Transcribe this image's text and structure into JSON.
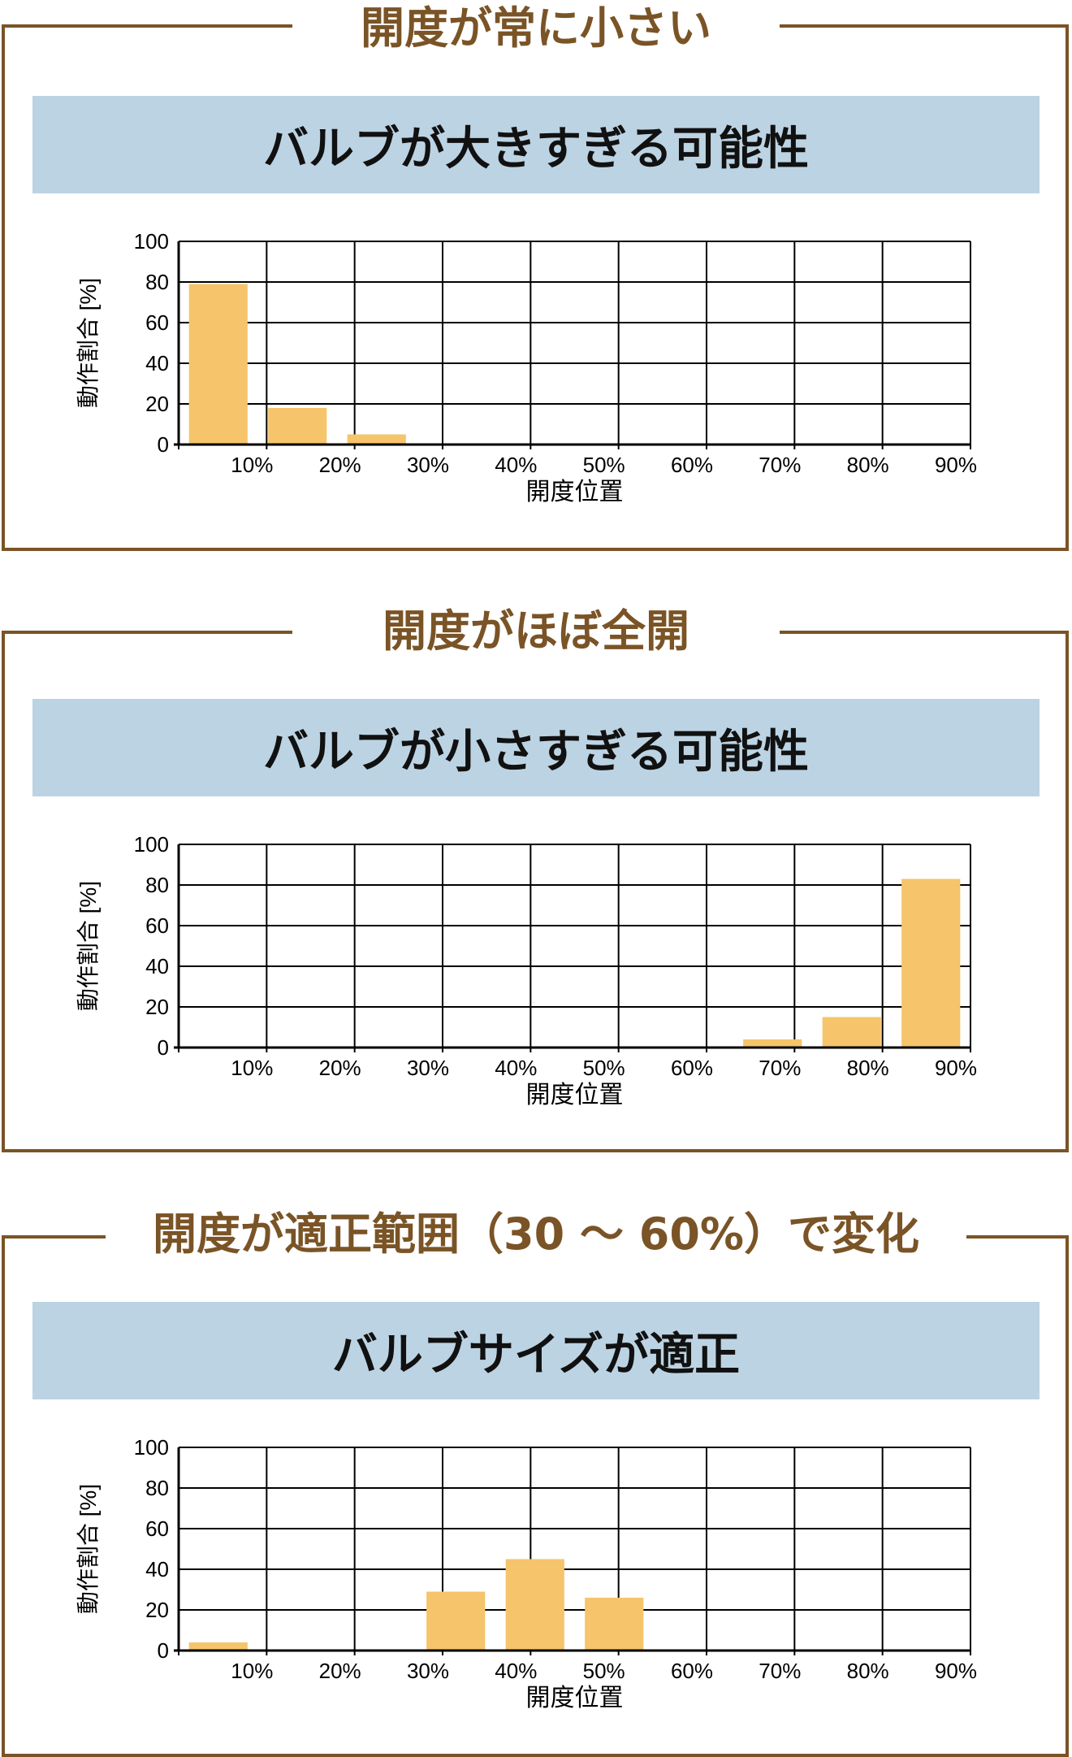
{
  "colors": {
    "frame": "#7a5426",
    "heading": "#7a5426",
    "banner": "#bcd3e3",
    "bar": "#f5c46b",
    "grid": "#000000"
  },
  "panels": [
    {
      "heading": "開度が常に小さい",
      "banner": "バルブが大きすぎる可能性"
    },
    {
      "heading": "開度がほぼ全開",
      "banner": "バルブが小さすぎる可能性"
    },
    {
      "heading": "開度が適正範囲（30 ～ 60%）で変化",
      "banner": "バルブサイズが適正"
    }
  ],
  "chart_data": [
    {
      "type": "bar",
      "categories": [
        "0-10%",
        "10-20%",
        "20-30%",
        "30-40%",
        "40-50%",
        "50-60%",
        "60-70%",
        "70-80%",
        "80-90%",
        "90-100%"
      ],
      "values": [
        79,
        18,
        5,
        0,
        0,
        0,
        0,
        0,
        0,
        0
      ],
      "xlabel": "開度位置",
      "ylabel": "動作割合 [%]",
      "xticks": [
        "10%",
        "20%",
        "30%",
        "40%",
        "50%",
        "60%",
        "70%",
        "80%",
        "90%"
      ],
      "yticks": [
        "0",
        "20",
        "40",
        "60",
        "80",
        "100"
      ],
      "ylim": [
        0,
        100
      ],
      "grid": true
    },
    {
      "type": "bar",
      "categories": [
        "0-10%",
        "10-20%",
        "20-30%",
        "30-40%",
        "40-50%",
        "50-60%",
        "60-70%",
        "70-80%",
        "80-90%",
        "90-100%"
      ],
      "values": [
        0,
        0,
        0,
        0,
        0,
        0,
        0,
        4,
        15,
        83
      ],
      "xlabel": "開度位置",
      "ylabel": "動作割合 [%]",
      "xticks": [
        "10%",
        "20%",
        "30%",
        "40%",
        "50%",
        "60%",
        "70%",
        "80%",
        "90%"
      ],
      "yticks": [
        "0",
        "20",
        "40",
        "60",
        "80",
        "100"
      ],
      "ylim": [
        0,
        100
      ],
      "grid": true
    },
    {
      "type": "bar",
      "categories": [
        "0-10%",
        "10-20%",
        "20-30%",
        "30-40%",
        "40-50%",
        "50-60%",
        "60-70%",
        "70-80%",
        "80-90%",
        "90-100%"
      ],
      "values": [
        4,
        0,
        0,
        29,
        45,
        26,
        0,
        0,
        0,
        0
      ],
      "xlabel": "開度位置",
      "ylabel": "動作割合 [%]",
      "xticks": [
        "10%",
        "20%",
        "30%",
        "40%",
        "50%",
        "60%",
        "70%",
        "80%",
        "90%"
      ],
      "yticks": [
        "0",
        "20",
        "40",
        "60",
        "80",
        "100"
      ],
      "ylim": [
        0,
        100
      ],
      "grid": true
    }
  ]
}
